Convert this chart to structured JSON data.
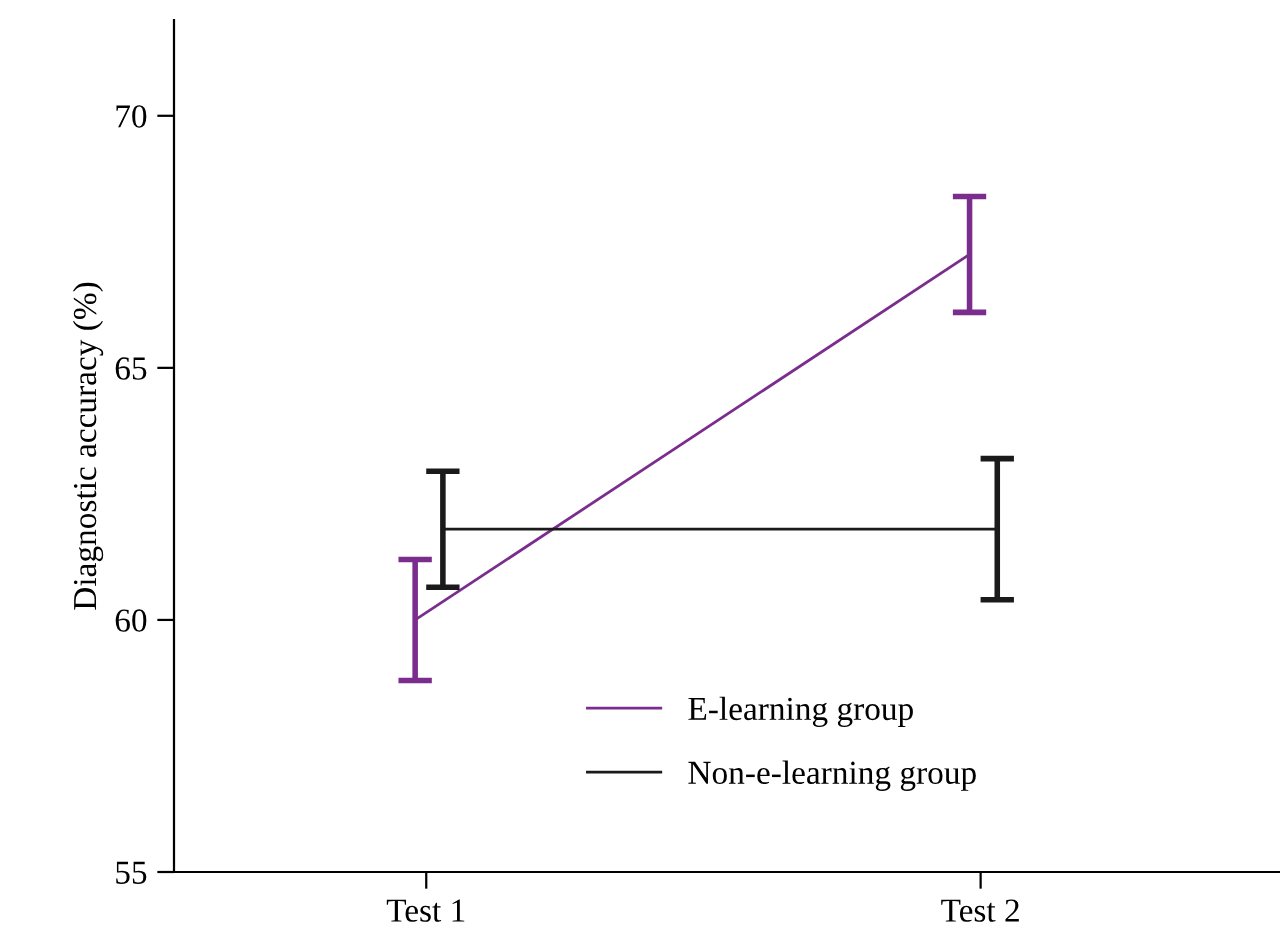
{
  "chart_data": {
    "type": "line",
    "ylabel": "Diagnostic accuracy (%)",
    "categories": [
      "Test 1",
      "Test 2"
    ],
    "series": [
      {
        "name": "E-learning group",
        "color": "#7b2d8e",
        "values": [
          60.0,
          67.25
        ],
        "errors": [
          1.2,
          1.15
        ]
      },
      {
        "name": "Non-e-learning group",
        "color": "#1a1a1a",
        "values": [
          61.8,
          61.8
        ],
        "errors": [
          1.15,
          1.4
        ]
      }
    ],
    "ylim": [
      55,
      71.9
    ],
    "yticks": [
      55,
      60,
      65,
      70
    ],
    "grid": false,
    "legend": "bottom",
    "marker": "none",
    "line_style": "solid"
  }
}
